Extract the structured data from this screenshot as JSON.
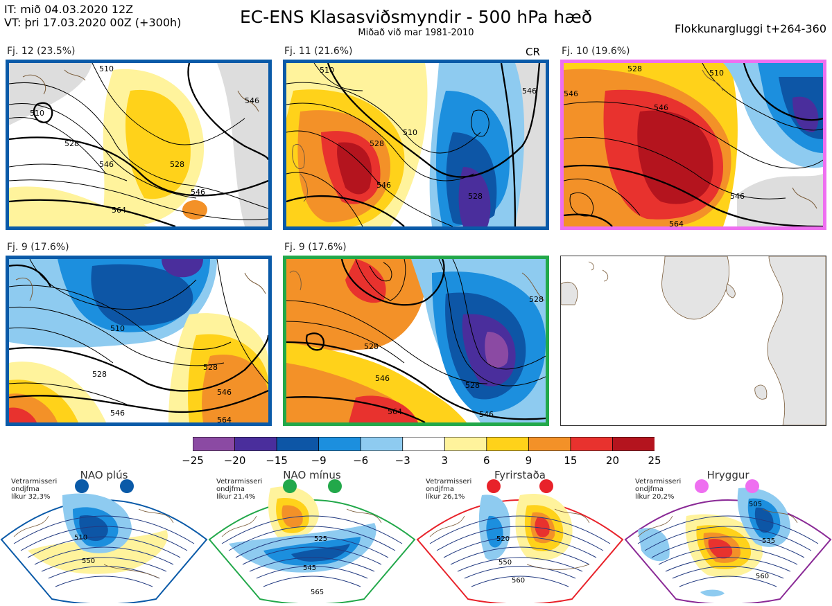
{
  "header": {
    "it_line": "IT: mið 04.03.2020 12Z",
    "vt_line": "VT: þri 17.03.2020 00Z  (+300h)",
    "title": "EC-ENS Klasasviðsmyndir - 500 hPa hæð",
    "subtitle": "Miðað við mar 1981-2010",
    "window": "Flokkunargluggi t+264-360"
  },
  "panels": [
    {
      "label": "Fj. 12 (23.5%)",
      "regime": "NAO plús",
      "border": "#0a5aa8",
      "contours": [
        "510",
        "528",
        "546",
        "528",
        "546",
        "564",
        "510",
        "546"
      ]
    },
    {
      "label": "Fj. 11 (21.6%)",
      "regime": "NAO plús",
      "border": "#0a5aa8",
      "tag": "CR",
      "contours": [
        "510",
        "528",
        "546",
        "510",
        "528",
        "546"
      ]
    },
    {
      "label": "Fj. 10 (19.6%)",
      "regime": "Hryggur",
      "border": "#ee6ff0",
      "contours": [
        "528",
        "546",
        "510",
        "546",
        "564",
        "546"
      ]
    },
    {
      "label": "Fj. 9 (17.6%)",
      "regime": "NAO plús",
      "border": "#0a5aa8",
      "contours": [
        "510",
        "528",
        "528",
        "546",
        "546",
        "564"
      ]
    },
    {
      "label": "Fj. 9 (17.6%)",
      "regime": "NAO mínus",
      "border": "#22a84a",
      "contours": [
        "528",
        "546",
        "528",
        "546",
        "564",
        "528"
      ]
    }
  ],
  "colorbar": {
    "colors": [
      "#8b4aa3",
      "#4a2e9c",
      "#0d56a6",
      "#1c8fde",
      "#8ecbf0",
      "#ffffff",
      "#fff39c",
      "#ffd21a",
      "#f39128",
      "#e8322e",
      "#b4141e"
    ],
    "ticks": [
      "−25",
      "−20",
      "−15",
      "−9",
      "−6",
      "−3",
      "3",
      "6",
      "9",
      "15",
      "20",
      "25"
    ]
  },
  "regimes": [
    {
      "name": "NAO plús",
      "note_1": "Vetrarmisseri",
      "note_2": "ondjfma",
      "note_3": "líkur 32,3%",
      "color": "#0a5aa8",
      "labels": [
        "510",
        "550"
      ]
    },
    {
      "name": "NAO mínus",
      "note_1": "Vetrarmisseri",
      "note_2": "ondjfma",
      "note_3": "líkur 21,4%",
      "color": "#22a84a",
      "labels": [
        "525",
        "545",
        "565"
      ]
    },
    {
      "name": "Fyrirstaða",
      "note_1": "Vetrarmisseri",
      "note_2": "ondjfma",
      "note_3": "líkur 26,1%",
      "color": "#e8222a",
      "labels": [
        "520",
        "550",
        "560"
      ]
    },
    {
      "name": "Hryggur",
      "note_1": "Vetrarmisseri",
      "note_2": "ondjfma",
      "note_3": "líkur 20,2%",
      "color": "#ee6ff0",
      "labels": [
        "505",
        "535",
        "560"
      ]
    }
  ]
}
